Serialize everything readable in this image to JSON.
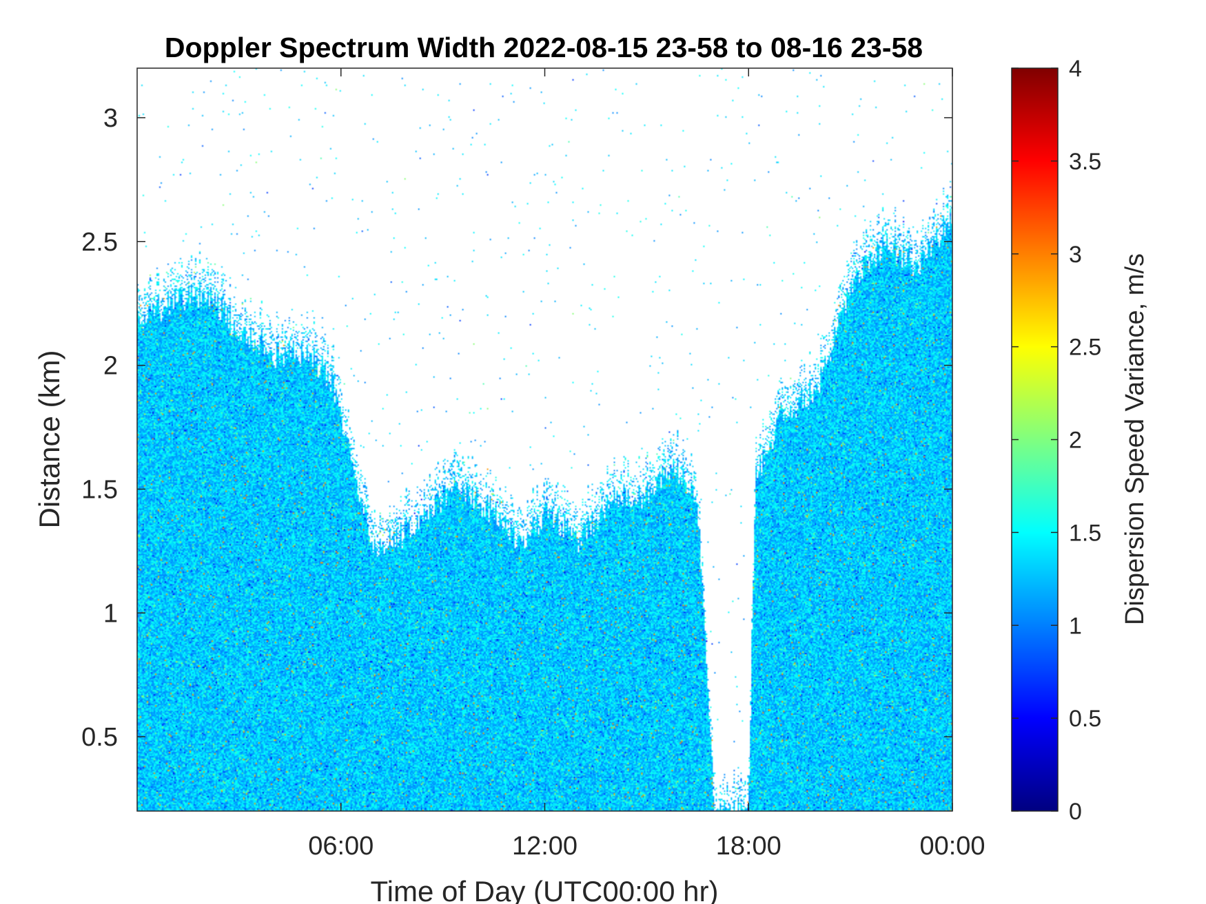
{
  "chart_data": {
    "type": "heatmap",
    "title": "Doppler Spectrum Width 2022-08-15 23-58 to 08-16 23-58",
    "xlabel": "Time of Day (UTC00:00 hr)",
    "ylabel": "Distance (km)",
    "xlim": [
      0,
      24
    ],
    "ylim": [
      0.2,
      3.2
    ],
    "x_ticks": [
      {
        "value": 6,
        "label": "06:00"
      },
      {
        "value": 12,
        "label": "12:00"
      },
      {
        "value": 18,
        "label": "18:00"
      },
      {
        "value": 24,
        "label": "00:00"
      }
    ],
    "y_ticks": [
      {
        "value": 0.5,
        "label": "0.5"
      },
      {
        "value": 1,
        "label": "1"
      },
      {
        "value": 1.5,
        "label": "1.5"
      },
      {
        "value": 2,
        "label": "2"
      },
      {
        "value": 2.5,
        "label": "2.5"
      },
      {
        "value": 3,
        "label": "3"
      }
    ],
    "colorbar": {
      "label": "Dispersion Speed Variance, m/s",
      "colormap": "jet",
      "clim": [
        0,
        4
      ],
      "ticks": [
        {
          "value": 0,
          "label": "0"
        },
        {
          "value": 0.5,
          "label": "0.5"
        },
        {
          "value": 1,
          "label": "1"
        },
        {
          "value": 1.5,
          "label": "1.5"
        },
        {
          "value": 2,
          "label": "2"
        },
        {
          "value": 2.5,
          "label": "2.5"
        },
        {
          "value": 3,
          "label": "3"
        },
        {
          "value": 3.5,
          "label": "3.5"
        },
        {
          "value": 4,
          "label": "4"
        }
      ]
    },
    "data_top_height_km": [
      {
        "time": 0.0,
        "height": 2.2
      },
      {
        "time": 1.0,
        "height": 2.25
      },
      {
        "time": 2.0,
        "height": 2.3
      },
      {
        "time": 3.0,
        "height": 2.15
      },
      {
        "time": 4.0,
        "height": 2.05
      },
      {
        "time": 5.0,
        "height": 2.05
      },
      {
        "time": 5.7,
        "height": 1.95
      },
      {
        "time": 6.3,
        "height": 1.6
      },
      {
        "time": 7.0,
        "height": 1.28
      },
      {
        "time": 7.8,
        "height": 1.32
      },
      {
        "time": 8.5,
        "height": 1.4
      },
      {
        "time": 9.5,
        "height": 1.52
      },
      {
        "time": 10.5,
        "height": 1.4
      },
      {
        "time": 11.3,
        "height": 1.27
      },
      {
        "time": 12.0,
        "height": 1.4
      },
      {
        "time": 13.0,
        "height": 1.3
      },
      {
        "time": 14.0,
        "height": 1.45
      },
      {
        "time": 15.0,
        "height": 1.48
      },
      {
        "time": 15.8,
        "height": 1.6
      },
      {
        "time": 16.5,
        "height": 1.45
      },
      {
        "time": 17.0,
        "height": 0.2
      },
      {
        "time": 18.0,
        "height": 0.2
      },
      {
        "time": 18.2,
        "height": 1.55
      },
      {
        "time": 19.0,
        "height": 1.8
      },
      {
        "time": 20.0,
        "height": 1.9
      },
      {
        "time": 21.0,
        "height": 2.3
      },
      {
        "time": 22.0,
        "height": 2.5
      },
      {
        "time": 23.0,
        "height": 2.4
      },
      {
        "time": 24.0,
        "height": 2.6
      }
    ],
    "typical_value_ms": 1.3,
    "grid": false
  }
}
